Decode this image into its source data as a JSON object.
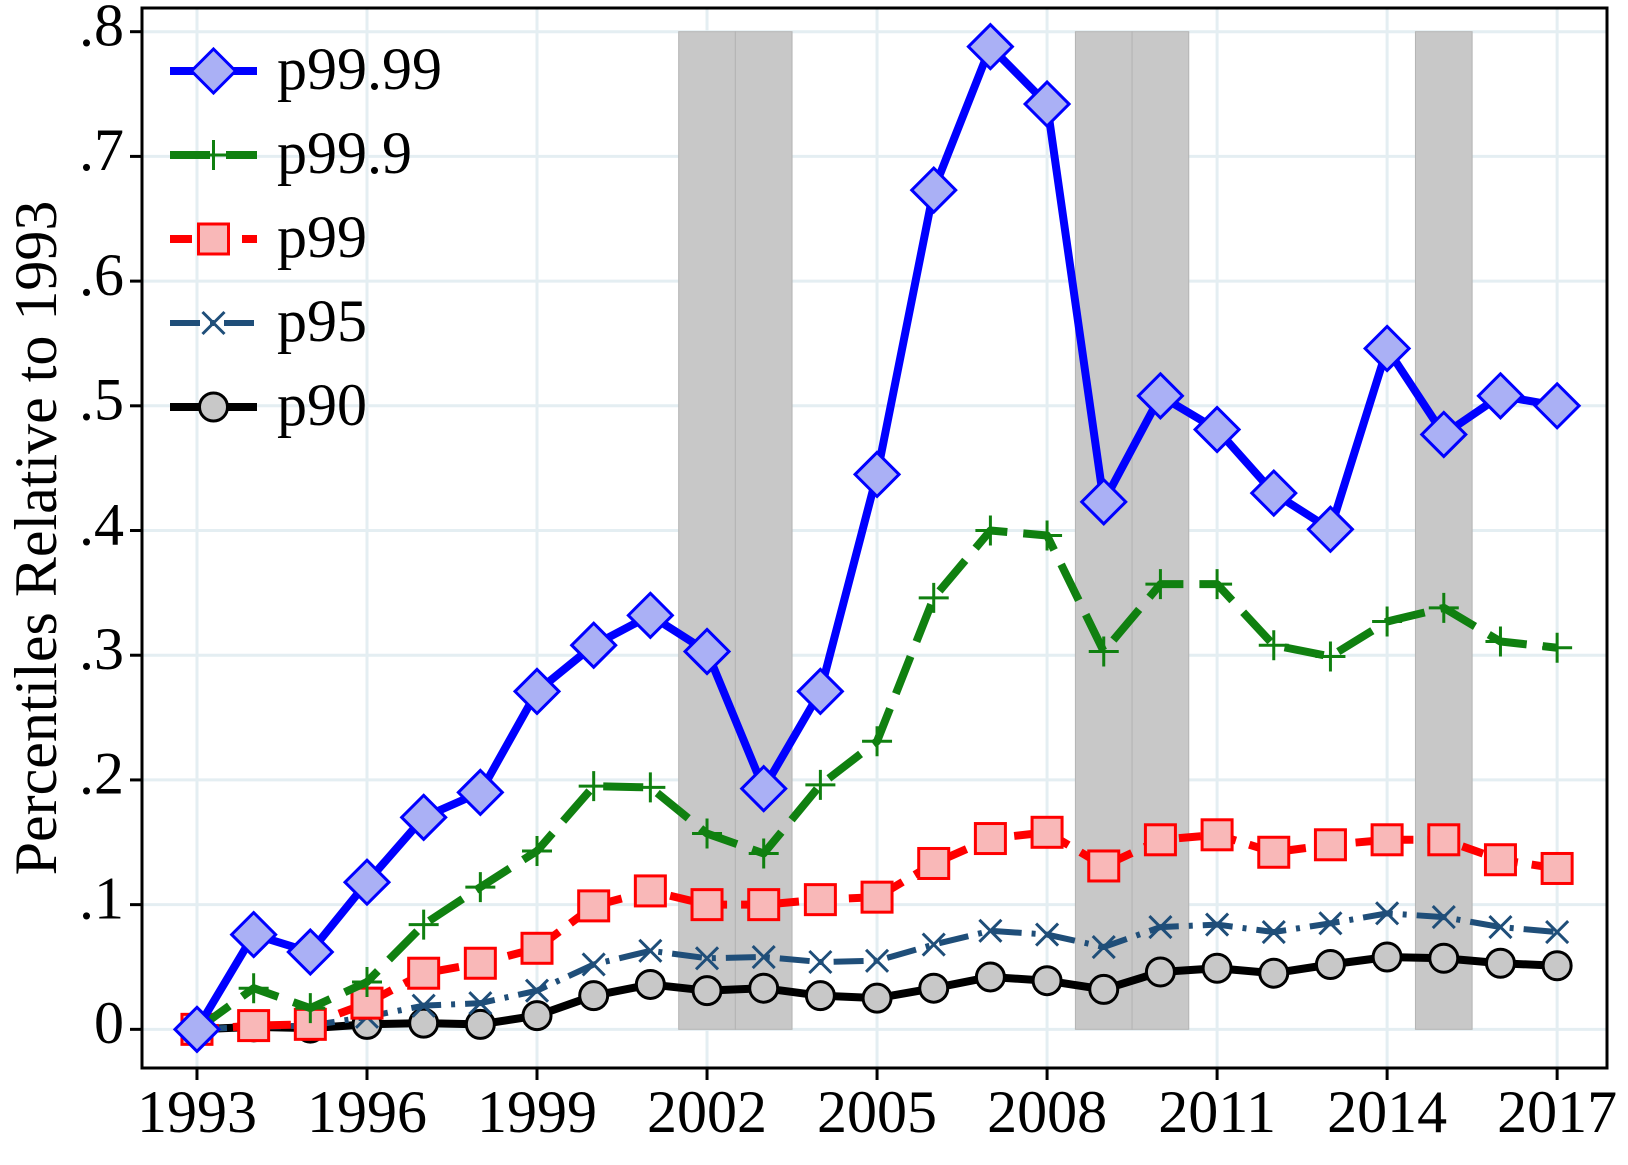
{
  "chart_data": {
    "type": "line",
    "y_label": "Percentiles Relative to 1993",
    "x": [
      1993,
      1994,
      1995,
      1996,
      1997,
      1998,
      1999,
      2000,
      2001,
      2002,
      2003,
      2004,
      2005,
      2006,
      2007,
      2008,
      2009,
      2010,
      2011,
      2012,
      2013,
      2014,
      2015,
      2016,
      2017
    ],
    "series": [
      {
        "name": "p99.99",
        "color": "#0000ff",
        "marker": "diamond",
        "marker_fill": "#aab0f5",
        "line_style": "solid",
        "values": [
          0,
          0.076,
          0.062,
          0.118,
          0.17,
          0.19,
          0.271,
          0.308,
          0.332,
          0.303,
          0.193,
          0.271,
          0.445,
          0.673,
          0.788,
          0.742,
          0.423,
          0.508,
          0.481,
          0.43,
          0.401,
          0.546,
          0.477,
          0.508,
          0.5
        ]
      },
      {
        "name": "p99.9",
        "color": "#108010",
        "marker": "plus",
        "marker_fill": "#108010",
        "line_style": "dash",
        "values": [
          0,
          0.033,
          0.017,
          0.038,
          0.084,
          0.114,
          0.143,
          0.195,
          0.194,
          0.157,
          0.141,
          0.196,
          0.231,
          0.346,
          0.4,
          0.396,
          0.303,
          0.357,
          0.357,
          0.308,
          0.299,
          0.327,
          0.338,
          0.311,
          0.306
        ]
      },
      {
        "name": "p99",
        "color": "#ff0000",
        "marker": "square",
        "marker_fill": "#f9b8b8",
        "line_style": "shortdash",
        "values": [
          0,
          0.003,
          0.004,
          0.021,
          0.045,
          0.053,
          0.065,
          0.099,
          0.111,
          0.1,
          0.1,
          0.104,
          0.106,
          0.133,
          0.153,
          0.158,
          0.131,
          0.152,
          0.156,
          0.142,
          0.148,
          0.152,
          0.152,
          0.136,
          0.129
        ]
      },
      {
        "name": "p95",
        "color": "#1f4e79",
        "marker": "x",
        "marker_fill": "#1f4e79",
        "line_style": "dashdot",
        "values": [
          0,
          0.002,
          0.003,
          0.01,
          0.019,
          0.021,
          0.031,
          0.052,
          0.063,
          0.057,
          0.058,
          0.054,
          0.055,
          0.068,
          0.079,
          0.076,
          0.066,
          0.082,
          0.084,
          0.078,
          0.085,
          0.093,
          0.09,
          0.082,
          0.078
        ]
      },
      {
        "name": "p90",
        "color": "#000000",
        "marker": "circle",
        "marker_fill": "#c8c8c8",
        "line_style": "solid",
        "values": [
          0,
          0.002,
          0.001,
          0.004,
          0.005,
          0.004,
          0.011,
          0.027,
          0.036,
          0.031,
          0.033,
          0.027,
          0.025,
          0.033,
          0.042,
          0.039,
          0.032,
          0.046,
          0.049,
          0.045,
          0.052,
          0.058,
          0.057,
          0.053,
          0.051
        ]
      }
    ],
    "shaded_ranges": [
      [
        2001.5,
        2002.5
      ],
      [
        2002.5,
        2003.5
      ],
      [
        2008.5,
        2009.5
      ],
      [
        2009.5,
        2010.5
      ],
      [
        2014.5,
        2015.5
      ]
    ],
    "xlim": [
      1992.03,
      2017.88
    ],
    "ylim": [
      -0.031,
      0.819
    ],
    "xticks": [
      1993,
      1996,
      1999,
      2002,
      2005,
      2008,
      2011,
      2014,
      2017
    ],
    "yticks": [
      0,
      {
        "value": 0.1,
        "label": ".1"
      },
      {
        "value": 0.2,
        "label": ".2"
      },
      {
        "value": 0.3,
        "label": ".3"
      },
      {
        "value": 0.4,
        "label": ".4"
      },
      {
        "value": 0.5,
        "label": ".5"
      },
      {
        "value": 0.6,
        "label": ".6"
      },
      {
        "value": 0.7,
        "label": ".7"
      },
      {
        "value": 0.8,
        "label": ".8"
      }
    ],
    "grid": true,
    "legend": "upper left"
  }
}
